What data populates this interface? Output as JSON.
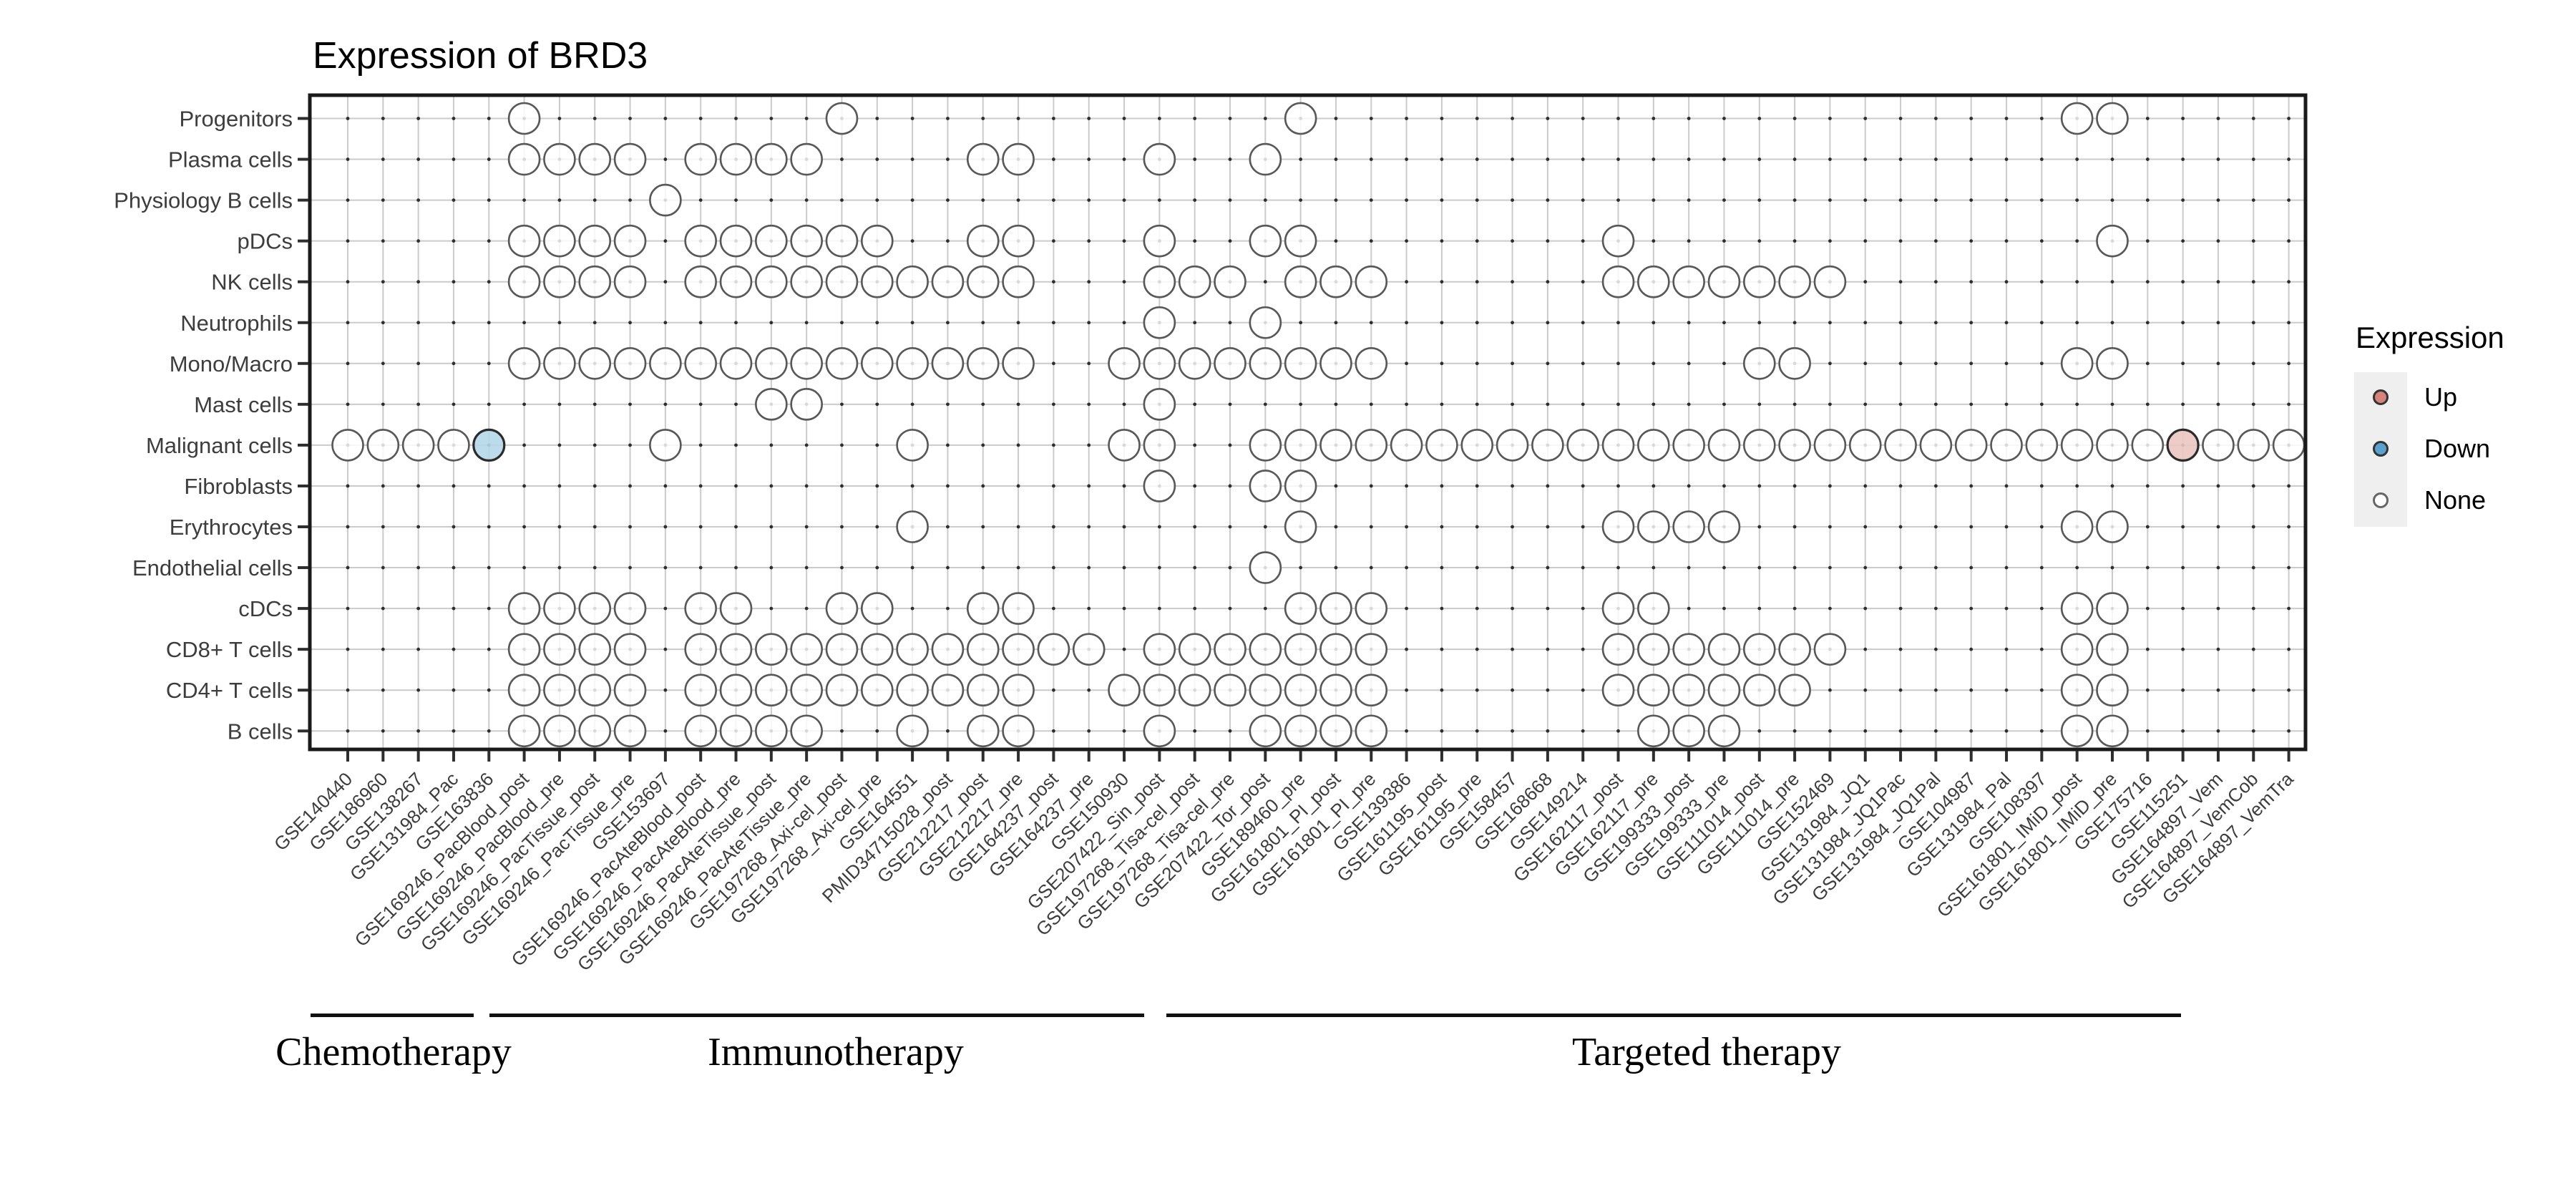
{
  "chart_title": "Expression of BRD3",
  "legend": {
    "title": "Expression",
    "items": [
      {
        "label": "Up",
        "color": "#D6837C"
      },
      {
        "label": "Down",
        "color": "#5BA1D0"
      },
      {
        "label": "None",
        "color": "#FFFFFF"
      }
    ]
  },
  "chart_data": {
    "type": "dot-matrix",
    "title": "Expression of BRD3",
    "legend_title": "Expression",
    "legend_entries": [
      "Up",
      "Down",
      "None"
    ],
    "colors": {
      "up": "#EBC7C2",
      "down": "#B5D7E9",
      "none": "#FFFFFF"
    },
    "rows": [
      "Progenitors",
      "Plasma cells",
      "Physiology B cells",
      "pDCs",
      "NK cells",
      "Neutrophils",
      "Mono/Macro",
      "Mast cells",
      "Malignant cells",
      "Fibroblasts",
      "Erythrocytes",
      "Endothelial cells",
      "cDCs",
      "CD8+ T cells",
      "CD4+ T cells",
      "B cells"
    ],
    "columns": [
      "GSE140440",
      "GSE186960",
      "GSE138267",
      "GSE131984_Pac",
      "GSE163836",
      "GSE169246_PacBlood_post",
      "GSE169246_PacBlood_pre",
      "GSE169246_PacTissue_post",
      "GSE169246_PacTissue_pre",
      "GSE153697",
      "GSE169246_PacAteBlood_post",
      "GSE169246_PacAteBlood_pre",
      "GSE169246_PacAteTissue_post",
      "GSE169246_PacAteTissue_pre",
      "GSE197268_Axi-cel_post",
      "GSE197268_Axi-cel_pre",
      "GSE164551",
      "PMID34715028_post",
      "GSE212217_post",
      "GSE212217_pre",
      "GSE164237_post",
      "GSE164237_pre",
      "GSE150930",
      "GSE207422_Sin_post",
      "GSE197268_Tisa-cel_post",
      "GSE197268_Tisa-cel_pre",
      "GSE207422_Tor_post",
      "GSE189460_pre",
      "GSE161801_PI_post",
      "GSE161801_PI_pre",
      "GSE139386",
      "GSE161195_post",
      "GSE161195_pre",
      "GSE158457",
      "GSE168668",
      "GSE149214",
      "GSE162117_post",
      "GSE162117_pre",
      "GSE199333_post",
      "GSE199333_pre",
      "GSE111014_post",
      "GSE111014_pre",
      "GSE152469",
      "GSE131984_JQ1",
      "GSE131984_JQ1Pac",
      "GSE131984_JQ1Pal",
      "GSE104987",
      "GSE131984_Pal",
      "GSE108397",
      "GSE161801_IMiD_post",
      "GSE161801_IMiD_pre",
      "GSE175716",
      "GSE115251",
      "GSE164897_Vem",
      "GSE164897_VemCob",
      "GSE164897_VemTra"
    ],
    "column_groups": [
      {
        "label": "Chemotherapy",
        "start": 0,
        "end": 3
      },
      {
        "label": "Immunotherapy",
        "start": 4,
        "end": 22
      },
      {
        "label": "Targeted therapy",
        "start": 23,
        "end": 52
      }
    ],
    "cells": [
      {
        "row": "Progenitors",
        "none": [
          5,
          14,
          27,
          49,
          50
        ],
        "down": [],
        "up": []
      },
      {
        "row": "Plasma cells",
        "none": [
          5,
          6,
          7,
          8,
          10,
          11,
          12,
          13,
          18,
          19,
          23,
          26
        ],
        "down": [],
        "up": []
      },
      {
        "row": "Physiology B cells",
        "none": [
          9
        ],
        "down": [],
        "up": []
      },
      {
        "row": "pDCs",
        "none": [
          5,
          6,
          7,
          8,
          10,
          11,
          12,
          13,
          14,
          15,
          18,
          19,
          23,
          26,
          27,
          36,
          50
        ],
        "down": [],
        "up": []
      },
      {
        "row": "NK cells",
        "none": [
          5,
          6,
          7,
          8,
          10,
          11,
          12,
          13,
          14,
          15,
          16,
          17,
          18,
          19,
          23,
          24,
          25,
          27,
          28,
          29,
          36,
          37,
          38,
          39,
          40,
          41,
          42
        ],
        "down": [],
        "up": []
      },
      {
        "row": "Neutrophils",
        "none": [
          23,
          26
        ],
        "down": [],
        "up": []
      },
      {
        "row": "Mono/Macro",
        "none": [
          5,
          6,
          7,
          8,
          9,
          10,
          11,
          12,
          13,
          14,
          15,
          16,
          17,
          18,
          19,
          22,
          23,
          24,
          25,
          26,
          27,
          28,
          29,
          40,
          41,
          49,
          50
        ],
        "down": [],
        "up": []
      },
      {
        "row": "Mast cells",
        "none": [
          12,
          13,
          23
        ],
        "down": [],
        "up": []
      },
      {
        "row": "Malignant cells",
        "none": [
          0,
          1,
          2,
          3,
          9,
          16,
          22,
          23,
          26,
          27,
          28,
          29,
          30,
          31,
          32,
          33,
          34,
          35,
          36,
          37,
          38,
          39,
          40,
          41,
          42,
          43,
          44,
          45,
          46,
          47,
          48,
          49,
          50,
          51,
          53,
          54,
          55
        ],
        "down": [
          4
        ],
        "up": [
          52
        ]
      },
      {
        "row": "Fibroblasts",
        "none": [
          23,
          26,
          27
        ],
        "down": [],
        "up": []
      },
      {
        "row": "Erythrocytes",
        "none": [
          16,
          27,
          36,
          37,
          38,
          39,
          49,
          50
        ],
        "down": [],
        "up": []
      },
      {
        "row": "Endothelial cells",
        "none": [
          26
        ],
        "down": [],
        "up": []
      },
      {
        "row": "cDCs",
        "none": [
          5,
          6,
          7,
          8,
          10,
          11,
          14,
          15,
          18,
          19,
          27,
          28,
          29,
          36,
          37,
          49,
          50
        ],
        "down": [],
        "up": []
      },
      {
        "row": "CD8+ T cells",
        "none": [
          5,
          6,
          7,
          8,
          10,
          11,
          12,
          13,
          14,
          15,
          16,
          17,
          18,
          19,
          20,
          21,
          23,
          24,
          25,
          26,
          27,
          28,
          29,
          36,
          37,
          38,
          39,
          40,
          41,
          42,
          49,
          50
        ],
        "down": [],
        "up": []
      },
      {
        "row": "CD4+ T cells",
        "none": [
          5,
          6,
          7,
          8,
          10,
          11,
          12,
          13,
          14,
          15,
          16,
          17,
          18,
          19,
          22,
          23,
          24,
          25,
          26,
          27,
          28,
          29,
          36,
          37,
          38,
          39,
          40,
          41,
          49,
          50
        ],
        "down": [],
        "up": []
      },
      {
        "row": "B cells",
        "none": [
          5,
          6,
          7,
          8,
          10,
          11,
          12,
          13,
          16,
          18,
          19,
          23,
          26,
          27,
          28,
          29,
          37,
          38,
          39,
          49,
          50
        ],
        "down": [],
        "up": []
      }
    ]
  }
}
